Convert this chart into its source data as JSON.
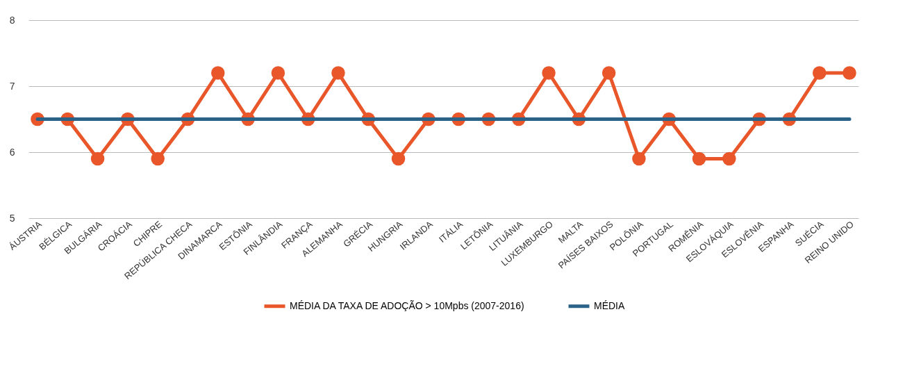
{
  "chart_data": {
    "type": "line",
    "categories": [
      "ÁUSTRIA",
      "BÉLGICA",
      "BULGÁRIA",
      "CROÁCIA",
      "CHIPRE",
      "REPÚBLICA CHECA",
      "DINAMARCA",
      "ESTÔNIA",
      "FINLÂNDIA",
      "FRANÇA",
      "ALEMANHA",
      "GRÉCIA",
      "HUNGRIA",
      "IRLANDA",
      "ITÁLIA",
      "LETÔNIA",
      "LITUÂNIA",
      "LUXEMBURGO",
      "MALTA",
      "PAÍSES BAIXOS",
      "POLÔNIA",
      "PORTUGAL",
      "ROMÊNIA",
      "ESLOVÁQUIA",
      "ESLOVÊNIA",
      "ESPANHA",
      "SUÉCIA",
      "REINO UNIDO"
    ],
    "series": [
      {
        "name": "MÉDIA DA TAXA DE ADOÇÃO > 10Mpbs (2007-2016)",
        "color": "#e8562a",
        "marker": "circle",
        "values": [
          6.5,
          6.5,
          5.9,
          6.5,
          5.9,
          6.5,
          7.2,
          6.5,
          7.2,
          6.5,
          7.2,
          6.5,
          5.9,
          6.5,
          6.5,
          6.5,
          6.5,
          7.2,
          6.5,
          7.2,
          5.9,
          6.5,
          5.9,
          5.9,
          6.5,
          6.5,
          7.2,
          7.2
        ]
      },
      {
        "name": "MÉDIA",
        "color": "#2a6387",
        "marker": "none",
        "values": [
          6.5,
          6.5,
          6.5,
          6.5,
          6.5,
          6.5,
          6.5,
          6.5,
          6.5,
          6.5,
          6.5,
          6.5,
          6.5,
          6.5,
          6.5,
          6.5,
          6.5,
          6.5,
          6.5,
          6.5,
          6.5,
          6.5,
          6.5,
          6.5,
          6.5,
          6.5,
          6.5,
          6.5
        ]
      }
    ],
    "ylim": [
      5,
      8
    ],
    "yticks": [
      5,
      6,
      7,
      8
    ],
    "grid": "y",
    "legend": "bottom"
  }
}
